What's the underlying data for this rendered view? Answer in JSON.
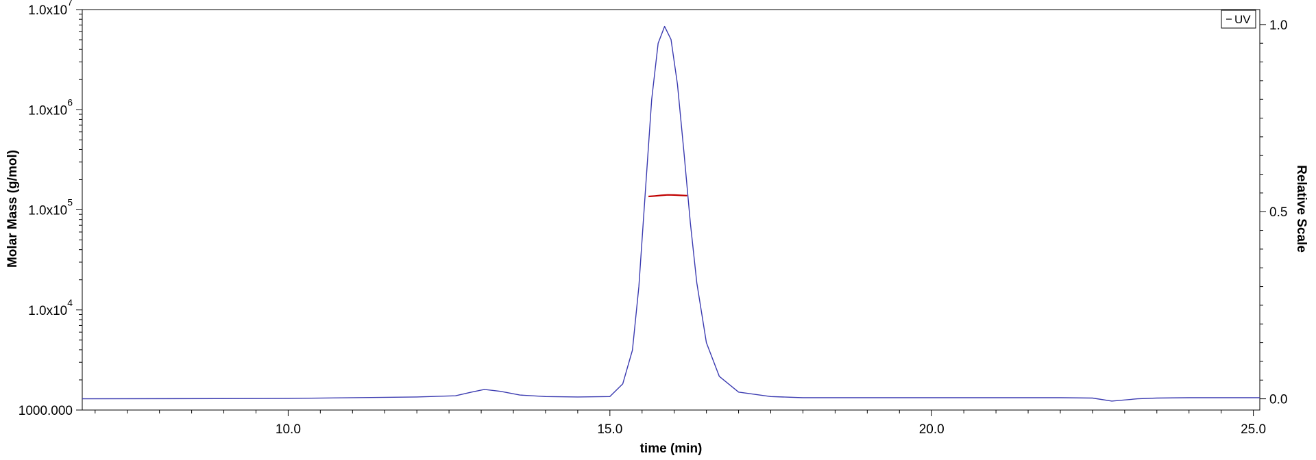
{
  "chart_data": {
    "type": "line",
    "xlabel": "time (min)",
    "ylabel_left": "Molar Mass (g/mol)",
    "ylabel_right": "Relative Scale",
    "xlim": [
      6.8,
      25.1
    ],
    "x_ticks": [
      10.0,
      15.0,
      20.0,
      25.0
    ],
    "x_tick_labels": [
      "10.0",
      "15.0",
      "20.0",
      "25.0"
    ],
    "y_left_scale": "log",
    "y_left_lim": [
      1000,
      10000000
    ],
    "y_left_ticks": [
      {
        "value": 1000,
        "mantissa": "1000.000",
        "exponent": ""
      },
      {
        "value": 10000,
        "mantissa": "1.0x10",
        "exponent": "4"
      },
      {
        "value": 100000,
        "mantissa": "1.0x10",
        "exponent": "5"
      },
      {
        "value": 1000000,
        "mantissa": "1.0x10",
        "exponent": "6"
      },
      {
        "value": 10000000,
        "mantissa": "1.0x10",
        "exponent": "7"
      }
    ],
    "y_right_lim": [
      -0.03,
      1.04
    ],
    "y_right_ticks": [
      0.0,
      0.5,
      1.0
    ],
    "y_right_tick_labels": [
      "0.0",
      "0.5",
      "1.0"
    ],
    "legend": {
      "entries": [
        "UV"
      ],
      "placement": "top-right"
    },
    "series": [
      {
        "name": "UV",
        "axis": "right",
        "color": "#3a3ab0",
        "x": [
          6.8,
          10.0,
          12.0,
          12.6,
          12.85,
          13.05,
          13.3,
          13.6,
          14.0,
          14.5,
          15.0,
          15.2,
          15.35,
          15.45,
          15.55,
          15.65,
          15.75,
          15.85,
          15.95,
          16.05,
          16.15,
          16.25,
          16.35,
          16.5,
          16.7,
          17.0,
          17.5,
          18.0,
          20.0,
          22.0,
          22.5,
          22.8,
          23.2,
          23.5,
          24.0,
          25.1
        ],
        "y": [
          0.0,
          0.001,
          0.005,
          0.008,
          0.018,
          0.025,
          0.02,
          0.01,
          0.006,
          0.005,
          0.006,
          0.04,
          0.13,
          0.3,
          0.55,
          0.8,
          0.95,
          0.995,
          0.96,
          0.84,
          0.66,
          0.47,
          0.31,
          0.15,
          0.06,
          0.018,
          0.006,
          0.003,
          0.003,
          0.003,
          0.002,
          -0.006,
          0.0,
          0.002,
          0.003,
          0.003
        ]
      },
      {
        "name": "",
        "axis": "left",
        "color": "#c00000",
        "x": [
          15.6,
          15.7,
          15.8,
          15.9,
          16.0,
          16.1,
          16.2
        ],
        "y": [
          136000,
          137500,
          139500,
          141000,
          140500,
          139500,
          138500
        ]
      }
    ]
  }
}
